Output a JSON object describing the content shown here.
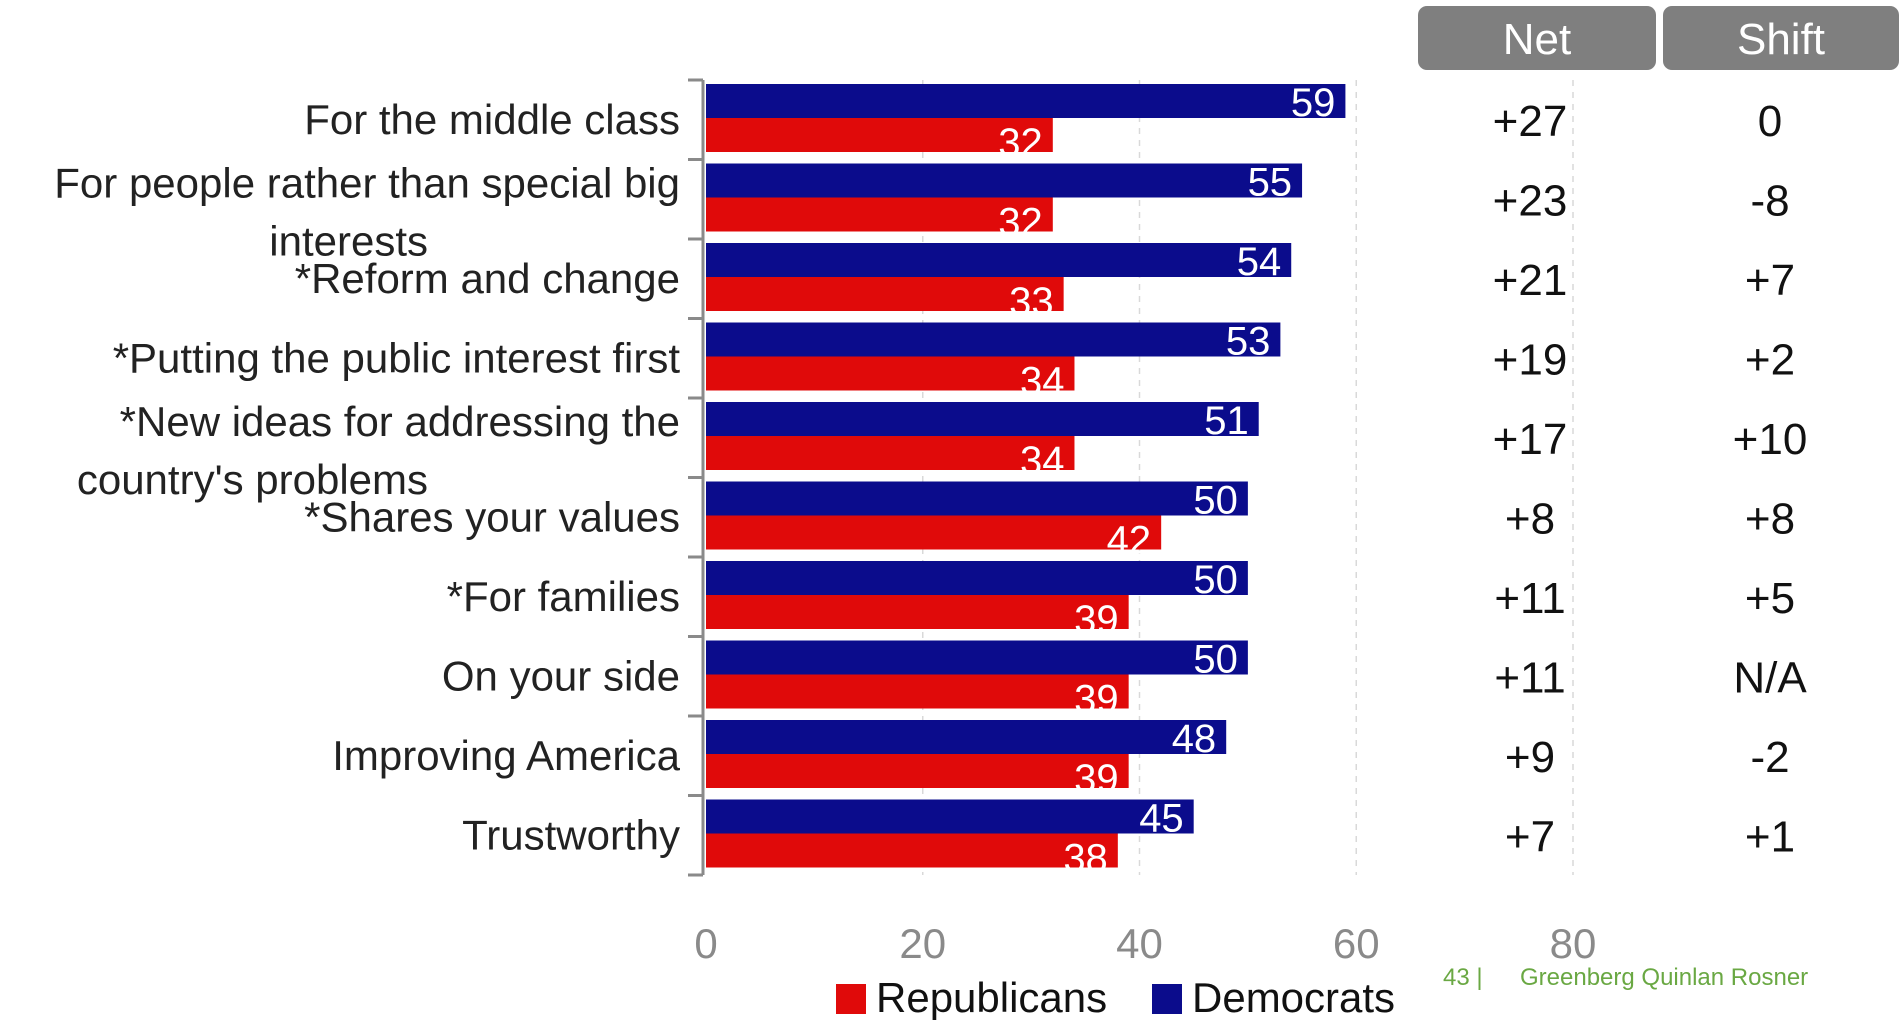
{
  "colors": {
    "democrats": "#0b0c8c",
    "republicans": "#e00a0a",
    "header_bg": "#7f7f7f",
    "footer": "#6aa843",
    "gridline": "#d9d9d9"
  },
  "columns": {
    "net_header": "Net",
    "shift_header": "Shift"
  },
  "chart_data": {
    "type": "bar",
    "orientation": "horizontal",
    "categories": [
      "For the middle class",
      "For people rather than special big interests",
      "*Reform and change",
      "*Putting the public interest first",
      "*New ideas for addressing the country's problems",
      "*Shares your values",
      "*For families",
      "On your side",
      "Improving America",
      "Trustworthy"
    ],
    "category_lines": [
      [
        "For the middle class"
      ],
      [
        "For people rather than special big",
        "interests"
      ],
      [
        "*Reform and change"
      ],
      [
        "*Putting the public interest first"
      ],
      [
        "*New ideas for addressing the",
        "country's problems"
      ],
      [
        "*Shares your values"
      ],
      [
        "*For families"
      ],
      [
        "On your side"
      ],
      [
        "Improving America"
      ],
      [
        "Trustworthy"
      ]
    ],
    "series": [
      {
        "name": "Democrats",
        "values": [
          59,
          55,
          54,
          53,
          51,
          50,
          50,
          50,
          48,
          45
        ]
      },
      {
        "name": "Republicans",
        "values": [
          32,
          32,
          33,
          34,
          34,
          42,
          39,
          39,
          39,
          38
        ]
      }
    ],
    "net": [
      "+27",
      "+23",
      "+21",
      "+19",
      "+17",
      "+8",
      "+11",
      "+11",
      "+9",
      "+7"
    ],
    "shift": [
      "0",
      "-8",
      "+7",
      "+2",
      "+10",
      "+8",
      "+5",
      "N/A",
      "-2",
      "+1"
    ],
    "xlim": [
      0,
      80
    ],
    "xticks": [
      "0",
      "20",
      "40",
      "60",
      "80"
    ],
    "legend": [
      "Republicans",
      "Democrats"
    ],
    "legend_position": "bottom",
    "grid": true
  },
  "footer": {
    "page_number": "43 |",
    "company": "Greenberg Quinlan Rosner"
  }
}
